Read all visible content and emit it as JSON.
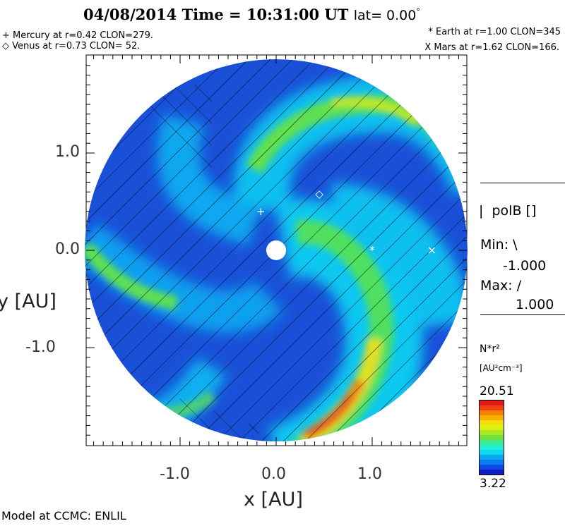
{
  "chart_data": {
    "type": "heatmap",
    "title": {
      "date": "04/08/2014",
      "time_label": "Time = 10:31:00 UT",
      "lat_label": "lat= 0.00",
      "degree": "°"
    },
    "xlabel": "x [AU]",
    "ylabel": "y [AU]",
    "xlim": [
      -2.0,
      2.0
    ],
    "ylim": [
      -2.0,
      2.0
    ],
    "x_ticks": [
      "-1.0",
      "0.0",
      "1.0"
    ],
    "x_tick_values": [
      -1.0,
      0.0,
      1.0
    ],
    "y_ticks": [
      "1.0",
      "0.0",
      "-1.0"
    ],
    "y_tick_values": [
      1.0,
      0.0,
      -1.0
    ],
    "planets": [
      {
        "symbol": "+",
        "label": "+ Mercury at r=0.42 CLON=279.",
        "x": -0.16,
        "y": 0.4
      },
      {
        "symbol": "◇",
        "label": "◇ Venus at r=0.73 CLON= 52.",
        "x": 0.45,
        "y": 0.58
      },
      {
        "symbol": "*",
        "label": "* Earth at  r=1.00 CLON=345",
        "x": 1.0,
        "y": 0.0
      },
      {
        "symbol": "X",
        "label": "X Mars at r=1.62 CLON=166.",
        "x": 1.62,
        "y": 0.0
      }
    ],
    "overlay": {
      "name": "polB []",
      "marker": "|",
      "min_label": "Min:",
      "min_symbol": "\\",
      "min_value": "-1.000",
      "max_label": "Max:",
      "max_symbol": "/",
      "max_value": "1.000"
    },
    "colorbar": {
      "quantity": "N*r²",
      "units": "[AU²cm⁻³]",
      "max": "20.51",
      "min": "3.22",
      "colors": [
        "#0a1fc8",
        "#1248e8",
        "#0a7ef0",
        "#08a8f0",
        "#10d8f0",
        "#20f0d8",
        "#40e890",
        "#70e040",
        "#a8e820",
        "#e0f010",
        "#f0e008",
        "#f8b000",
        "#f88000",
        "#f04010",
        "#e01818"
      ]
    }
  },
  "footer": "Model at CCMC: ENLIL"
}
